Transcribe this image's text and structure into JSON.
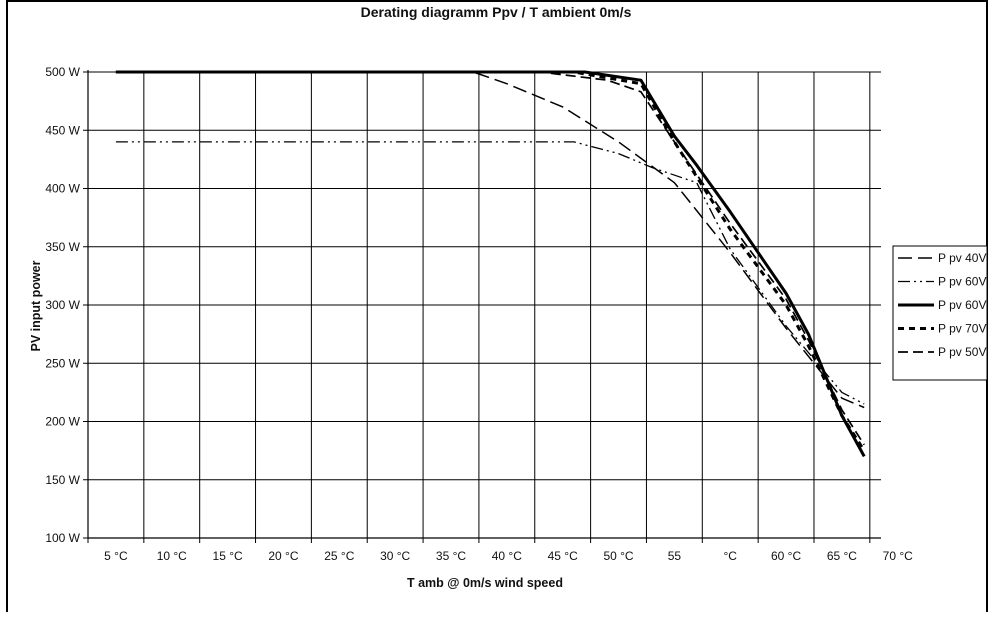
{
  "chart_data": {
    "type": "line",
    "title": "Derating diagramm Ppv / T ambient 0m/s",
    "xlabel": "T amb  @  0m/s wind speed",
    "ylabel": "PV input power",
    "x_tick_labels": [
      "5 °C",
      "10 °C",
      "15 °C",
      "20 °C",
      "25 °C",
      "30 °C",
      "35 °C",
      "40 °C",
      "45 °C",
      "50 °C",
      "55",
      "°C",
      "60 °C",
      "65 °C",
      "70 °C"
    ],
    "y_tick_labels": [
      "100 W",
      "150 W",
      "200 W",
      "250 W",
      "300 W",
      "350 W",
      "400 W",
      "450 W",
      "500 W"
    ],
    "xlim": [
      2.5,
      73.5
    ],
    "ylim": [
      100,
      500
    ],
    "grid": true,
    "legend_position": "right",
    "series": [
      {
        "name": "P pv 40V",
        "dash": "long-dash",
        "x": [
          5,
          37,
          40,
          45,
          50,
          55,
          60,
          65,
          70,
          72
        ],
        "y": [
          500,
          500,
          490,
          470,
          440,
          405,
          345,
          280,
          220,
          212
        ]
      },
      {
        "name": "P pv 60V",
        "dash": "dash-dot-dot",
        "x": [
          5,
          40,
          46,
          50,
          53,
          57,
          60,
          65,
          70,
          72
        ],
        "y": [
          440,
          440,
          440,
          430,
          418,
          405,
          348,
          282,
          225,
          215
        ]
      },
      {
        "name": "P pv 60V",
        "dash": "solid-bold",
        "x": [
          5,
          47,
          52,
          55,
          57,
          60,
          65,
          67,
          70,
          72
        ],
        "y": [
          500,
          500,
          493,
          445,
          420,
          380,
          310,
          275,
          205,
          170
        ]
      },
      {
        "name": "P pv 70V",
        "dash": "short-dash-bold",
        "x": [
          5,
          46,
          52,
          55,
          60,
          65,
          67,
          70,
          72
        ],
        "y": [
          500,
          500,
          490,
          440,
          365,
          300,
          265,
          205,
          175
        ]
      },
      {
        "name": "P pv 50V",
        "dash": "medium-dash",
        "x": [
          5,
          43,
          49,
          52,
          55,
          60,
          65,
          67,
          70,
          72
        ],
        "y": [
          500,
          500,
          493,
          483,
          440,
          370,
          305,
          270,
          210,
          180
        ]
      }
    ]
  }
}
